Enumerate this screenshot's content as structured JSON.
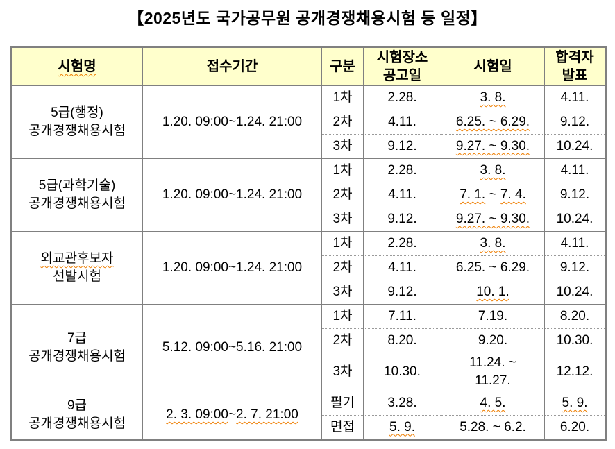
{
  "title": "【2025년도 국가공무원 공개경쟁채용시험 등 일정】",
  "colors": {
    "header_background": "#FFFFCC",
    "table_border": "#808080",
    "spellcheck_underline": "#EE7D00",
    "text": "#000000"
  },
  "table": {
    "header_cells": [
      [
        {
          "text": "시험명",
          "wavy": true
        }
      ],
      [
        {
          "text": "접수기간",
          "wavy": false
        }
      ],
      [
        {
          "text": "구분",
          "wavy": false
        }
      ],
      [
        {
          "text": "시험장소\n공고일",
          "wavy": false
        }
      ],
      [
        {
          "text": "시험일",
          "wavy": false
        }
      ],
      [
        {
          "text": "합격자\n발표",
          "wavy": false
        }
      ]
    ],
    "groups": [
      {
        "name": [
          {
            "text": "5급(행정)\n공개경쟁채용시험",
            "wavy": false
          }
        ],
        "period": [
          {
            "text": "1.20. 09:00~1.24. 21:00",
            "wavy": false
          }
        ],
        "rows": [
          {
            "category": [
              {
                "text": "1차"
              }
            ],
            "announce": [
              {
                "text": "2.28."
              }
            ],
            "exam": [
              {
                "text": "3. 8.",
                "wavy": true
              }
            ],
            "result": [
              {
                "text": "4.11."
              }
            ]
          },
          {
            "category": [
              {
                "text": "2차"
              }
            ],
            "announce": [
              {
                "text": "4.11."
              }
            ],
            "exam": [
              {
                "text": "6.25. ~ 6.29.",
                "wavy": true
              }
            ],
            "result": [
              {
                "text": "9.12."
              }
            ]
          },
          {
            "category": [
              {
                "text": "3차"
              }
            ],
            "announce": [
              {
                "text": "9.12."
              }
            ],
            "exam": [
              {
                "text": "9.27. ~ 9.30.",
                "wavy": true
              }
            ],
            "result": [
              {
                "text": "10.24."
              }
            ]
          }
        ]
      },
      {
        "name": [
          {
            "text": "5급(과학기술)\n공개경쟁채용시험",
            "wavy": false
          }
        ],
        "period": [
          {
            "text": "1.20. 09:00~1.24. 21:00",
            "wavy": false
          }
        ],
        "rows": [
          {
            "category": [
              {
                "text": "1차"
              }
            ],
            "announce": [
              {
                "text": "2.28."
              }
            ],
            "exam": [
              {
                "text": "3. 8.",
                "wavy": true
              }
            ],
            "result": [
              {
                "text": "4.11."
              }
            ]
          },
          {
            "category": [
              {
                "text": "2차"
              }
            ],
            "announce": [
              {
                "text": "4.11."
              }
            ],
            "exam": [
              {
                "text": "7. 1.",
                "wavy": true
              },
              {
                "text": " ~ ",
                "wavy": false
              },
              {
                "text": "7. 4.",
                "wavy": true
              }
            ],
            "result": [
              {
                "text": "9.12."
              }
            ]
          },
          {
            "category": [
              {
                "text": "3차"
              }
            ],
            "announce": [
              {
                "text": "9.12."
              }
            ],
            "exam": [
              {
                "text": "9.27. ~ 9.30.",
                "wavy": true
              }
            ],
            "result": [
              {
                "text": "10.24."
              }
            ]
          }
        ]
      },
      {
        "name": [
          {
            "text": "외교관후보자",
            "wavy": true
          },
          {
            "text": "\n선발시험",
            "wavy": false
          }
        ],
        "period": [
          {
            "text": "1.20. 09:00~1.24. 21:00",
            "wavy": false
          }
        ],
        "rows": [
          {
            "category": [
              {
                "text": "1차"
              }
            ],
            "announce": [
              {
                "text": "2.28."
              }
            ],
            "exam": [
              {
                "text": "3. 8.",
                "wavy": true
              }
            ],
            "result": [
              {
                "text": "4.11."
              }
            ]
          },
          {
            "category": [
              {
                "text": "2차"
              }
            ],
            "announce": [
              {
                "text": "4.11."
              }
            ],
            "exam": [
              {
                "text": "6.25. ~ 6.29.",
                "wavy": false
              }
            ],
            "result": [
              {
                "text": "9.12."
              }
            ]
          },
          {
            "category": [
              {
                "text": "3차"
              }
            ],
            "announce": [
              {
                "text": "9.12."
              }
            ],
            "exam": [
              {
                "text": "10. 1.",
                "wavy": true
              }
            ],
            "result": [
              {
                "text": "10.24."
              }
            ]
          }
        ]
      },
      {
        "name": [
          {
            "text": "7급\n공개경쟁채용시험",
            "wavy": false
          }
        ],
        "period": [
          {
            "text": "5.12. 09:00~5.16. 21:00",
            "wavy": false
          }
        ],
        "rows": [
          {
            "category": [
              {
                "text": "1차"
              }
            ],
            "announce": [
              {
                "text": "7.11."
              }
            ],
            "exam": [
              {
                "text": "7.19."
              }
            ],
            "result": [
              {
                "text": "8.20."
              }
            ]
          },
          {
            "category": [
              {
                "text": "2차"
              }
            ],
            "announce": [
              {
                "text": "8.20."
              }
            ],
            "exam": [
              {
                "text": "9.20."
              }
            ],
            "result": [
              {
                "text": "10.30."
              }
            ]
          },
          {
            "category": [
              {
                "text": "3차"
              }
            ],
            "announce": [
              {
                "text": "10.30."
              }
            ],
            "exam": [
              {
                "text": "11.24. ~\n11.27."
              }
            ],
            "result": [
              {
                "text": "12.12."
              }
            ]
          }
        ]
      },
      {
        "name": [
          {
            "text": "9급\n공개경쟁채용시험",
            "wavy": false
          }
        ],
        "period": [
          {
            "text": "2. 3. 09:00",
            "wavy": true
          },
          {
            "text": "~",
            "wavy": false
          },
          {
            "text": "2. 7. 21:00",
            "wavy": true
          }
        ],
        "rows": [
          {
            "category": [
              {
                "text": "필기"
              }
            ],
            "announce": [
              {
                "text": "3.28."
              }
            ],
            "exam": [
              {
                "text": "4. 5.",
                "wavy": true
              }
            ],
            "result": [
              {
                "text": "5. 9.",
                "wavy": true
              }
            ]
          },
          {
            "category": [
              {
                "text": "면접"
              }
            ],
            "announce": [
              {
                "text": "5. 9.",
                "wavy": true
              }
            ],
            "exam": [
              {
                "text": "5.28. ~ 6.2."
              }
            ],
            "result": [
              {
                "text": "6.20."
              }
            ]
          }
        ]
      }
    ]
  }
}
